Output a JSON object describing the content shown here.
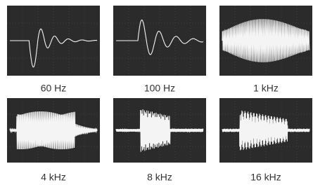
{
  "panels": [
    {
      "label": "60 Hz"
    },
    {
      "label": "100 Hz"
    },
    {
      "label": "1 kHz"
    },
    {
      "label": "4 kHz"
    },
    {
      "label": "8 kHz"
    },
    {
      "label": "16 kHz"
    }
  ]
}
